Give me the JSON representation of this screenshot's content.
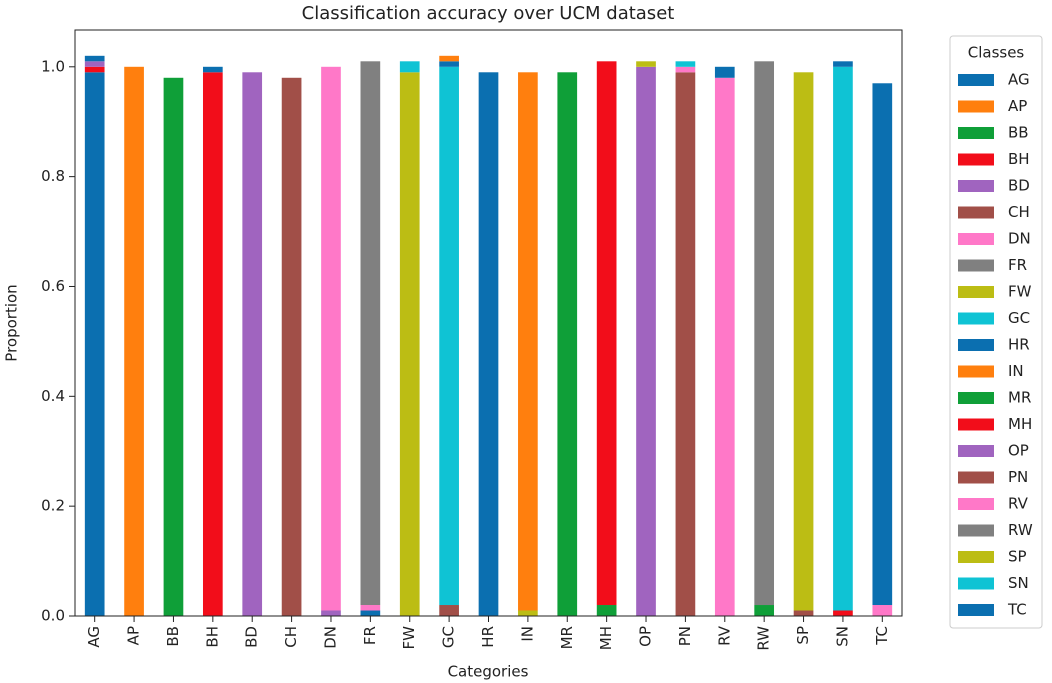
{
  "chart_data": {
    "type": "stacked_bar",
    "title": "Classification accuracy over UCM dataset",
    "x_label": "Categories",
    "y_label": "Proportion",
    "legend_title": "Classes",
    "legend_position": "outside right",
    "categories": [
      "AG",
      "AP",
      "BB",
      "BH",
      "BD",
      "CH",
      "DN",
      "FR",
      "FW",
      "GC",
      "HR",
      "IN",
      "MR",
      "MH",
      "OP",
      "PN",
      "RV",
      "RW",
      "SP",
      "SN",
      "TC"
    ],
    "ylim": [
      0,
      1.067
    ],
    "yticks": [
      {
        "value": 0,
        "label": "0.0"
      },
      0.2,
      0.4,
      0.6,
      0.8,
      {
        "value": 1,
        "label": "1.0"
      }
    ],
    "series": [
      {
        "name": "AG",
        "color": "#0b6fb0",
        "values": [
          0.99,
          0,
          0,
          0,
          0,
          0,
          0,
          0.01,
          0,
          0,
          0,
          0,
          0,
          0,
          0,
          0,
          0,
          0,
          0,
          0,
          0
        ]
      },
      {
        "name": "AP",
        "color": "#ff7f0e",
        "values": [
          0,
          1.0,
          0,
          0,
          0,
          0,
          0,
          0,
          0,
          0,
          0,
          0,
          0,
          0,
          0,
          0,
          0,
          0,
          0,
          0,
          0
        ]
      },
      {
        "name": "BB",
        "color": "#0f9f38",
        "values": [
          0,
          0,
          0.98,
          0,
          0,
          0,
          0,
          0,
          0,
          0,
          0,
          0,
          0,
          0.02,
          0,
          0,
          0,
          0,
          0,
          0,
          0
        ]
      },
      {
        "name": "BH",
        "color": "#f20d1a",
        "values": [
          0.01,
          0,
          0,
          0.99,
          0,
          0,
          0,
          0,
          0,
          0,
          0,
          0,
          0,
          0,
          0,
          0,
          0,
          0,
          0,
          0,
          0
        ]
      },
      {
        "name": "BD",
        "color": "#a064bf",
        "values": [
          0.01,
          0,
          0,
          0,
          0.99,
          0,
          0.01,
          0,
          0,
          0,
          0,
          0,
          0,
          0,
          0,
          0,
          0,
          0,
          0,
          0,
          0
        ]
      },
      {
        "name": "CH",
        "color": "#a14f48",
        "values": [
          0,
          0,
          0,
          0,
          0,
          0.98,
          0,
          0,
          0,
          0.02,
          0,
          0,
          0,
          0,
          0,
          0,
          0,
          0,
          0.01,
          0,
          0
        ]
      },
      {
        "name": "DN",
        "color": "#ff78c8",
        "values": [
          0,
          0,
          0,
          0,
          0,
          0,
          0.99,
          0.01,
          0,
          0,
          0,
          0,
          0,
          0,
          0,
          0,
          0,
          0,
          0,
          0,
          0
        ]
      },
      {
        "name": "FR",
        "color": "#808080",
        "values": [
          0,
          0,
          0,
          0,
          0,
          0,
          0,
          0.99,
          0,
          0,
          0,
          0,
          0,
          0,
          0,
          0,
          0,
          0,
          0,
          0,
          0
        ]
      },
      {
        "name": "FW",
        "color": "#bcbd14",
        "values": [
          0,
          0,
          0,
          0,
          0,
          0,
          0,
          0,
          0.99,
          0,
          0,
          0.01,
          0,
          0,
          0,
          0,
          0,
          0,
          0,
          0,
          0
        ]
      },
      {
        "name": "GC",
        "color": "#0fc3d4",
        "values": [
          0,
          0,
          0,
          0,
          0,
          0,
          0,
          0,
          0.02,
          0.98,
          0,
          0,
          0,
          0,
          0,
          0,
          0,
          0,
          0,
          0,
          0
        ]
      },
      {
        "name": "HR",
        "color": "#0b6fb0",
        "values": [
          0,
          0,
          0,
          0.01,
          0,
          0,
          0,
          0,
          0,
          0.01,
          0.99,
          0,
          0,
          0,
          0,
          0,
          0,
          0,
          0,
          0,
          0
        ]
      },
      {
        "name": "IN",
        "color": "#ff7f0e",
        "values": [
          0,
          0,
          0,
          0,
          0,
          0,
          0,
          0,
          0,
          0.01,
          0,
          0.98,
          0,
          0,
          0,
          0,
          0,
          0,
          0,
          0,
          0
        ]
      },
      {
        "name": "MR",
        "color": "#0f9f38",
        "values": [
          0,
          0,
          0,
          0,
          0,
          0,
          0,
          0,
          0,
          0,
          0,
          0,
          0.99,
          0,
          0,
          0,
          0,
          0.02,
          0,
          0,
          0
        ]
      },
      {
        "name": "MH",
        "color": "#f20d1a",
        "values": [
          0,
          0,
          0,
          0,
          0,
          0,
          0,
          0,
          0,
          0,
          0,
          0,
          0,
          0.99,
          0,
          0,
          0,
          0,
          0,
          0.01,
          0
        ]
      },
      {
        "name": "OP",
        "color": "#a064bf",
        "values": [
          0,
          0,
          0,
          0,
          0,
          0,
          0,
          0,
          0,
          0,
          0,
          0,
          0,
          0,
          1.0,
          0,
          0,
          0,
          0,
          0,
          0
        ]
      },
      {
        "name": "PN",
        "color": "#a14f48",
        "values": [
          0,
          0,
          0,
          0,
          0,
          0,
          0,
          0,
          0,
          0,
          0,
          0,
          0,
          0,
          0,
          0.99,
          0,
          0,
          0,
          0,
          0
        ]
      },
      {
        "name": "RV",
        "color": "#ff78c8",
        "values": [
          0,
          0,
          0,
          0,
          0,
          0,
          0,
          0,
          0,
          0,
          0,
          0,
          0,
          0,
          0,
          0.01,
          0.98,
          0,
          0,
          0,
          0.02
        ]
      },
      {
        "name": "RW",
        "color": "#808080",
        "values": [
          0,
          0,
          0,
          0,
          0,
          0,
          0,
          0,
          0,
          0,
          0,
          0,
          0,
          0,
          0,
          0,
          0,
          0.99,
          0,
          0,
          0
        ]
      },
      {
        "name": "SP",
        "color": "#bcbd14",
        "values": [
          0,
          0,
          0,
          0,
          0,
          0,
          0,
          0,
          0,
          0,
          0,
          0,
          0,
          0,
          0.01,
          0,
          0,
          0,
          0.98,
          0,
          0
        ]
      },
      {
        "name": "SN",
        "color": "#0fc3d4",
        "values": [
          0,
          0,
          0,
          0,
          0,
          0,
          0,
          0,
          0,
          0,
          0,
          0,
          0,
          0,
          0,
          0.01,
          0,
          0,
          0,
          0.99,
          0
        ]
      },
      {
        "name": "TC",
        "color": "#0b6fb0",
        "values": [
          0.01,
          0,
          0,
          0,
          0,
          0,
          0,
          0,
          0,
          0,
          0,
          0,
          0,
          0,
          0,
          0,
          0.02,
          0,
          0,
          0.01,
          0.95
        ]
      }
    ]
  }
}
